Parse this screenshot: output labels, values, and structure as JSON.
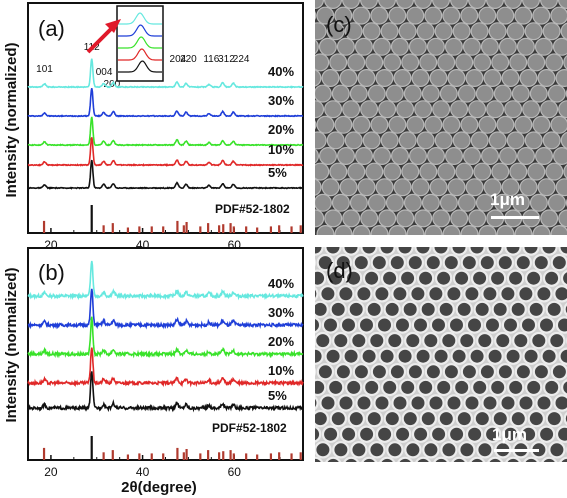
{
  "ylabel": "Intensity (normalized)",
  "xlabel": "2θ(degree)",
  "xticks": [
    "20",
    "40",
    "60"
  ],
  "panels": {
    "a": {
      "label": "(a)",
      "reference": "PDF#52-1802",
      "miller": [
        "101",
        "112",
        "004",
        "200",
        "204",
        "220",
        "116",
        "312",
        "224"
      ]
    },
    "b": {
      "label": "(b)",
      "reference": "PDF#52-1802"
    },
    "c": {
      "label": "(c)",
      "scalebar": "1μm"
    },
    "d": {
      "label": "(d)",
      "scalebar": "1μm"
    }
  },
  "chart_data": [
    {
      "type": "line",
      "panel": "a",
      "xlabel": "",
      "ylabel": "Intensity (normalized)",
      "xlim": [
        15,
        75
      ],
      "xticks": [
        20,
        40,
        60
      ],
      "peak_positions": [
        18.6,
        28.9,
        31.5,
        33.6,
        47.5,
        49.5,
        54.5,
        57.5,
        59.8
      ],
      "series": [
        {
          "name": "40%",
          "color": "#66e8df"
        },
        {
          "name": "30%",
          "color": "#1f3ed8"
        },
        {
          "name": "20%",
          "color": "#39e22a"
        },
        {
          "name": "10%",
          "color": "#e02828"
        },
        {
          "name": "5%",
          "color": "#111111"
        }
      ],
      "reference_name": "PDF#52-1802",
      "reference_peaks": [
        18.5,
        28.9,
        31.5,
        33.5,
        36.8,
        39.3,
        42.0,
        44.5,
        47.6,
        49.0,
        49.6,
        52.6,
        54.3,
        56.7,
        57.6,
        59.2,
        59.9,
        62.6,
        65.0,
        68.0,
        69.8,
        72.5,
        74.5
      ]
    },
    {
      "type": "line",
      "panel": "b",
      "xlabel": "2θ(degree)",
      "ylabel": "Intensity (normalized)",
      "xlim": [
        15,
        75
      ],
      "xticks": [
        20,
        40,
        60
      ],
      "peak_positions": [
        18.6,
        28.9,
        31.5,
        33.6,
        47.5,
        49.5,
        54.5,
        57.5,
        59.8
      ],
      "series": [
        {
          "name": "40%",
          "color": "#66e8df"
        },
        {
          "name": "30%",
          "color": "#1f3ed8"
        },
        {
          "name": "20%",
          "color": "#39e22a"
        },
        {
          "name": "10%",
          "color": "#e02828"
        },
        {
          "name": "5%",
          "color": "#111111"
        }
      ],
      "reference_name": "PDF#52-1802",
      "reference_peaks": [
        18.5,
        28.9,
        31.5,
        33.5,
        36.8,
        39.3,
        42.0,
        44.5,
        47.6,
        49.0,
        49.6,
        52.6,
        54.3,
        56.7,
        57.6,
        59.2,
        59.9,
        62.6,
        65.0,
        68.0,
        69.8,
        72.5,
        74.5
      ]
    }
  ]
}
